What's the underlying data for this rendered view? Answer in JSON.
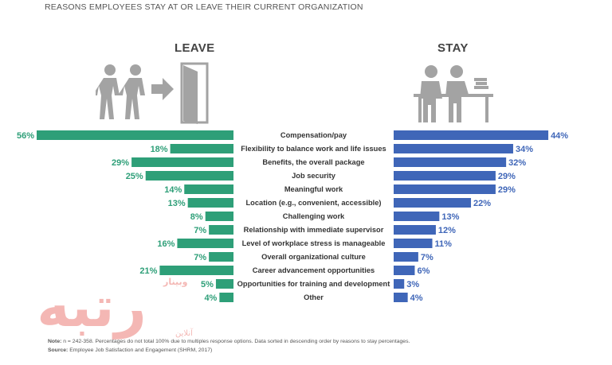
{
  "title": "REASONS EMPLOYEES STAY AT OR LEAVE THEIR CURRENT ORGANIZATION",
  "headings": {
    "leave": "LEAVE",
    "stay": "STAY"
  },
  "colors": {
    "leave": "#2e9f78",
    "stay": "#3f66b8",
    "leave_text": "#2e9f78",
    "stay_text": "#3f66b8",
    "icon_gray": "#a3a3a3"
  },
  "chart_data": {
    "type": "bar",
    "orientation": "horizontal-butterfly",
    "categories": [
      "Compensation/pay",
      "Flexibility to balance work and life issues",
      "Benefits, the overall package",
      "Job security",
      "Meaningful work",
      "Location (e.g., convenient, accessible)",
      "Challenging work",
      "Relationship with immediate supervisor",
      "Level of workplace stress is manageable",
      "Overall organizational culture",
      "Career advancement opportunities",
      "Opportunities for training and development",
      "Other"
    ],
    "series": [
      {
        "name": "LEAVE",
        "values": [
          56,
          18,
          29,
          25,
          14,
          13,
          8,
          7,
          16,
          7,
          21,
          5,
          4
        ]
      },
      {
        "name": "STAY",
        "values": [
          44,
          34,
          32,
          29,
          29,
          22,
          13,
          12,
          11,
          7,
          6,
          3,
          4
        ]
      }
    ],
    "unit": "%",
    "value_labels": {
      "leave": [
        "56%",
        "18%",
        "29%",
        "25%",
        "14%",
        "13%",
        "8%",
        "7%",
        "16%",
        "7%",
        "21%",
        "5%",
        "4%"
      ],
      "stay": [
        "44%",
        "34%",
        "32%",
        "29%",
        "29%",
        "22%",
        "13%",
        "12%",
        "11%",
        "7%",
        "6%",
        "3%",
        "4%"
      ]
    },
    "xlim": [
      0,
      56
    ],
    "grid": false,
    "legend": "none"
  },
  "footnote": {
    "note_label": "Note:",
    "note_text": " n = 242-358. Percentages do not total 100% due to multiples response options. Data sorted in descending order by reasons to stay percentages.",
    "source_label": "Source:",
    "source_text": " Employee Job Satisfaction and Engagement (SHRM, 2017)"
  },
  "watermark": {
    "main": "رتبه",
    "sub1": "وبینار",
    "sub2": "آنلاین"
  }
}
